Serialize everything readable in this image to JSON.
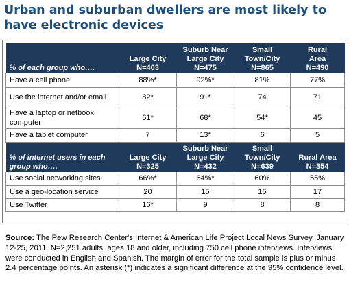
{
  "title": "Urban and suburban dwellers are most likely to have electronic devices",
  "chart_data": [
    {
      "type": "table",
      "header_label": "% of each group who….",
      "columns": [
        {
          "line1": "",
          "line2": "Large City",
          "line3": "N=403"
        },
        {
          "line1": "Suburb Near",
          "line2": "Large City",
          "line3": "N=475"
        },
        {
          "line1": "Small",
          "line2": "Town/City",
          "line3": "N=865"
        },
        {
          "line1": "Rural",
          "line2": "Area",
          "line3": "N=490"
        }
      ],
      "rows": [
        {
          "label": "Have a cell phone",
          "values": [
            "88%*",
            "92%*",
            "81%",
            "77%"
          ]
        },
        {
          "label": "Use the internet and/or email",
          "values": [
            "82*",
            "91*",
            "74",
            "71"
          ]
        },
        {
          "label": "Have a laptop or netbook computer",
          "values": [
            "61*",
            "68*",
            "54*",
            "45"
          ]
        },
        {
          "label": "Have a tablet computer",
          "values": [
            "7",
            "13*",
            "6",
            "5"
          ]
        }
      ]
    },
    {
      "type": "table",
      "header_label": "% of internet users in each group who….",
      "columns": [
        {
          "line1": "",
          "line2": "Large City",
          "line3": "N=325"
        },
        {
          "line1": "Suburb Near",
          "line2": "Large City",
          "line3": "N=432"
        },
        {
          "line1": "Small",
          "line2": "Town/City",
          "line3": "N=639"
        },
        {
          "line1": "",
          "line2": "Rural Area",
          "line3": "N=354"
        }
      ],
      "rows": [
        {
          "label": "Use social networking sites",
          "values": [
            "66%*",
            "64%*",
            "60%",
            "55%"
          ]
        },
        {
          "label": "Use a geo-location service",
          "values": [
            "20",
            "15",
            "15",
            "17"
          ]
        },
        {
          "label": "Use Twitter",
          "values": [
            "16*",
            "9",
            "8",
            "8"
          ]
        }
      ]
    }
  ],
  "source": {
    "label": "Source:",
    "text": "The Pew Research Center's Internet & American Life Project Local News Survey, January 12-25, 2011. N=2,251 adults, ages 18 and older, including 750 cell phone interviews. Interviews were conducted in English and Spanish. The margin of error for the total sample is plus or minus 2.4 percentage points.  An asterisk (*) indicates a significant difference at the 95% confidence level."
  },
  "colors": {
    "title": "#1f4e79",
    "header_bg": "#1f3a5a",
    "header_text": "#ffffff"
  }
}
